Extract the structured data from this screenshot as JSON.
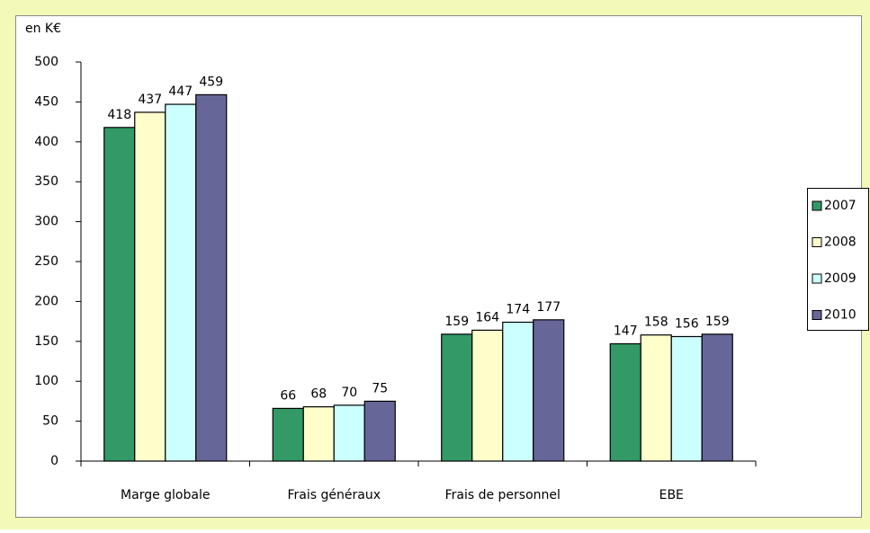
{
  "chart_data": {
    "type": "bar",
    "y_label": "en K€",
    "categories": [
      "Marge globale",
      "Frais généraux",
      "Frais de personnel",
      "EBE"
    ],
    "series": [
      {
        "name": "2007",
        "color": "#339966",
        "values": [
          418,
          66,
          159,
          147
        ]
      },
      {
        "name": "2008",
        "color": "#ffffcc",
        "values": [
          437,
          68,
          164,
          158
        ]
      },
      {
        "name": "2009",
        "color": "#ccffff",
        "values": [
          447,
          70,
          174,
          156
        ]
      },
      {
        "name": "2010",
        "color": "#666699",
        "values": [
          459,
          75,
          177,
          159
        ]
      }
    ],
    "ylim": [
      0,
      500
    ],
    "yticks": [
      0,
      50,
      100,
      150,
      200,
      250,
      300,
      350,
      400,
      450,
      500
    ],
    "grid": false,
    "legend": "right"
  }
}
